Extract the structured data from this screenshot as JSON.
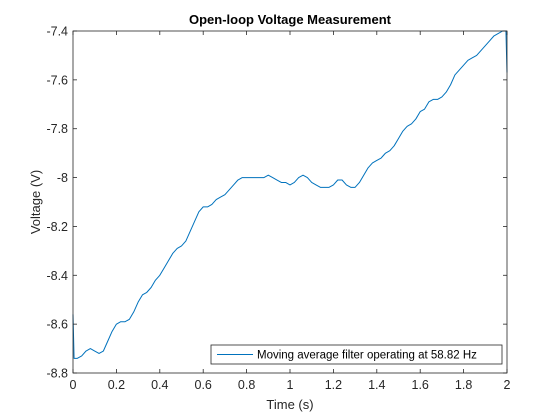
{
  "chart_data": {
    "type": "line",
    "title": "Open-loop Voltage Measurement",
    "xlabel": "Time (s)",
    "ylabel": "Voltage (V)",
    "xlim": [
      0,
      2
    ],
    "ylim": [
      -8.8,
      -7.4
    ],
    "xticks": [
      0,
      0.2,
      0.4,
      0.6,
      0.8,
      1,
      1.2,
      1.4,
      1.6,
      1.8,
      2
    ],
    "xtick_labels": [
      "0",
      "0.2",
      "0.4",
      "0.6",
      "0.8",
      "1",
      "1.2",
      "1.4",
      "1.6",
      "1.8",
      "2"
    ],
    "yticks": [
      -8.8,
      -8.6,
      -8.4,
      -8.2,
      -8,
      -7.8,
      -7.6,
      -7.4
    ],
    "ytick_labels": [
      "-8.8",
      "-8.6",
      "-8.4",
      "-8.2",
      "-8",
      "-7.8",
      "-7.6",
      "-7.4"
    ],
    "grid": false,
    "legend_position": "bottom-right",
    "series": [
      {
        "name": "Moving average filter operating at 58.82 Hz",
        "color": "#0072BD",
        "x": [
          0,
          0.005,
          0.02,
          0.04,
          0.06,
          0.08,
          0.1,
          0.12,
          0.14,
          0.16,
          0.18,
          0.2,
          0.22,
          0.24,
          0.26,
          0.28,
          0.3,
          0.32,
          0.34,
          0.36,
          0.38,
          0.4,
          0.42,
          0.44,
          0.46,
          0.48,
          0.5,
          0.52,
          0.54,
          0.56,
          0.58,
          0.6,
          0.62,
          0.64,
          0.66,
          0.68,
          0.7,
          0.72,
          0.74,
          0.76,
          0.78,
          0.8,
          0.82,
          0.84,
          0.86,
          0.88,
          0.9,
          0.92,
          0.94,
          0.96,
          0.98,
          1.0,
          1.02,
          1.04,
          1.06,
          1.08,
          1.1,
          1.12,
          1.14,
          1.16,
          1.18,
          1.2,
          1.22,
          1.24,
          1.26,
          1.28,
          1.3,
          1.32,
          1.34,
          1.36,
          1.38,
          1.4,
          1.42,
          1.44,
          1.46,
          1.48,
          1.5,
          1.52,
          1.54,
          1.56,
          1.58,
          1.6,
          1.62,
          1.64,
          1.66,
          1.68,
          1.7,
          1.72,
          1.74,
          1.76,
          1.78,
          1.8,
          1.82,
          1.84,
          1.86,
          1.88,
          1.9,
          1.92,
          1.94,
          1.96,
          1.98,
          1.995,
          2.0
        ],
        "y": [
          -8.56,
          -8.74,
          -8.74,
          -8.73,
          -8.71,
          -8.7,
          -8.71,
          -8.72,
          -8.71,
          -8.67,
          -8.63,
          -8.6,
          -8.59,
          -8.59,
          -8.58,
          -8.55,
          -8.51,
          -8.48,
          -8.47,
          -8.45,
          -8.42,
          -8.4,
          -8.37,
          -8.34,
          -8.31,
          -8.29,
          -8.28,
          -8.26,
          -8.22,
          -8.18,
          -8.14,
          -8.12,
          -8.12,
          -8.11,
          -8.09,
          -8.08,
          -8.07,
          -8.05,
          -8.03,
          -8.01,
          -8.0,
          -8.0,
          -8.0,
          -8.0,
          -8.0,
          -8.0,
          -7.99,
          -8.0,
          -8.01,
          -8.02,
          -8.02,
          -8.03,
          -8.02,
          -8.0,
          -7.99,
          -8.0,
          -8.02,
          -8.03,
          -8.04,
          -8.04,
          -8.04,
          -8.03,
          -8.01,
          -8.01,
          -8.03,
          -8.04,
          -8.04,
          -8.02,
          -7.99,
          -7.96,
          -7.94,
          -7.93,
          -7.92,
          -7.9,
          -7.89,
          -7.87,
          -7.84,
          -7.81,
          -7.79,
          -7.78,
          -7.76,
          -7.73,
          -7.72,
          -7.69,
          -7.68,
          -7.68,
          -7.67,
          -7.65,
          -7.62,
          -7.58,
          -7.56,
          -7.54,
          -7.52,
          -7.51,
          -7.5,
          -7.48,
          -7.46,
          -7.44,
          -7.42,
          -7.41,
          -7.4,
          -7.4,
          -7.57
        ]
      }
    ]
  }
}
